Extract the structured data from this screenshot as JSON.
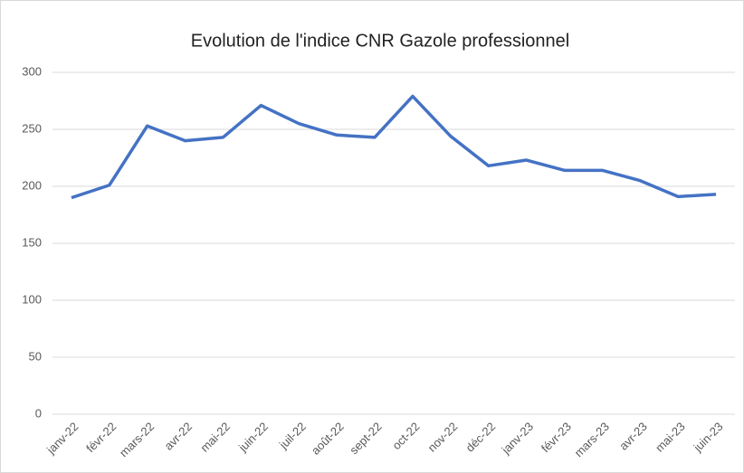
{
  "chart_data": {
    "type": "line",
    "title": "Evolution de l'indice CNR Gazole professionnel",
    "categories": [
      "janv-22",
      "févr-22",
      "mars-22",
      "avr-22",
      "mai-22",
      "juin-22",
      "juil-22",
      "août-22",
      "sept-22",
      "oct-22",
      "nov-22",
      "déc-22",
      "janv-23",
      "févr-23",
      "mars-23",
      "avr-23",
      "mai-23",
      "juin-23"
    ],
    "series": [
      {
        "name": null,
        "color": "#4472c4",
        "values": [
          190,
          201,
          253,
          240,
          243,
          271,
          255,
          245,
          243,
          279,
          244,
          218,
          223,
          214,
          214,
          205,
          191,
          193
        ]
      }
    ],
    "ylim": [
      0,
      300
    ],
    "yticks": [
      0,
      50,
      100,
      150,
      200,
      250,
      300
    ],
    "grid": true
  }
}
